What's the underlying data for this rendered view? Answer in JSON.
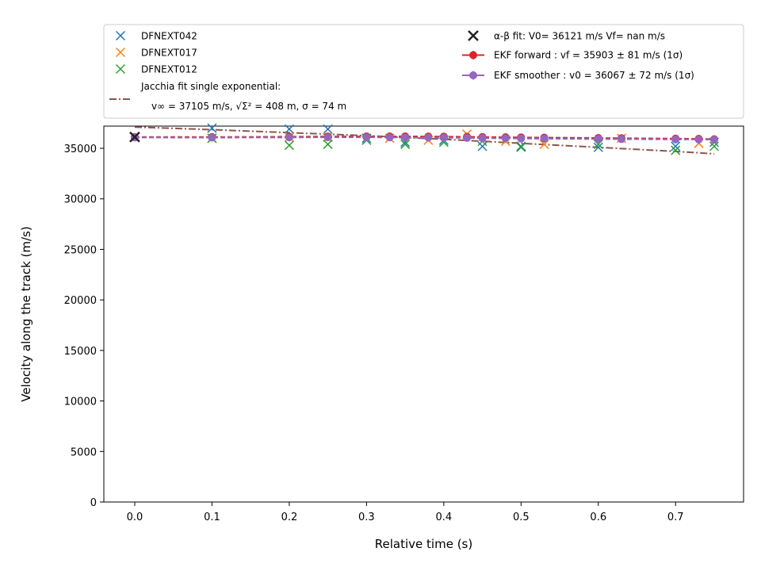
{
  "chart_data": {
    "type": "scatter",
    "xlabel": "Relative time (s)",
    "ylabel": "Velocity along the track (m/s)",
    "xlim": [
      -0.04,
      0.788
    ],
    "ylim": [
      0,
      37200
    ],
    "xticks": [
      0.0,
      0.1,
      0.2,
      0.3,
      0.4,
      0.5,
      0.6,
      0.7
    ],
    "xtick_labels": [
      "0.0",
      "0.1",
      "0.2",
      "0.3",
      "0.4",
      "0.5",
      "0.6",
      "0.7"
    ],
    "yticks": [
      0,
      5000,
      10000,
      15000,
      20000,
      25000,
      30000,
      35000
    ],
    "ytick_labels": [
      "0",
      "5000",
      "10000",
      "15000",
      "20000",
      "25000",
      "30000",
      "35000"
    ],
    "grid": false,
    "legend_placement": "above-plot",
    "series": [
      {
        "name": "DFNEXT042",
        "kind": "x-marker",
        "color": "#1f77b4",
        "x": [
          0.0,
          0.1,
          0.2,
          0.25,
          0.3,
          0.35,
          0.4,
          0.45,
          0.5,
          0.6,
          0.7,
          0.75
        ],
        "y": [
          36100,
          37000,
          36900,
          36900,
          36000,
          35600,
          35800,
          35200,
          35200,
          35100,
          35200,
          35600
        ]
      },
      {
        "name": "DFNEXT017",
        "kind": "x-marker",
        "color": "#ff7f0e",
        "x": [
          0.0,
          0.1,
          0.2,
          0.25,
          0.33,
          0.38,
          0.43,
          0.48,
          0.53,
          0.63,
          0.73
        ],
        "y": [
          36100,
          36000,
          36100,
          36100,
          36000,
          35800,
          36400,
          35700,
          35400,
          36000,
          35500
        ]
      },
      {
        "name": "DFNEXT012",
        "kind": "x-marker",
        "color": "#2ca02c",
        "x": [
          0.0,
          0.1,
          0.2,
          0.25,
          0.3,
          0.35,
          0.4,
          0.45,
          0.5,
          0.6,
          0.7,
          0.75
        ],
        "y": [
          36100,
          36000,
          35300,
          35400,
          35800,
          35400,
          35600,
          35700,
          35100,
          35400,
          34800,
          35200
        ]
      },
      {
        "name_lines": [
          "Jacchia fit single exponential:",
          "v∞ = 37105 m/s, √Σ² = 408 m, σ = 74 m"
        ],
        "kind": "dashdot-line",
        "color": "#8c564b",
        "x": [
          0.0,
          0.1,
          0.2,
          0.3,
          0.4,
          0.5,
          0.6,
          0.7,
          0.75
        ],
        "y": [
          37105,
          36850,
          36550,
          36250,
          35900,
          35500,
          35100,
          34700,
          34450
        ]
      },
      {
        "name": "α-β fit: V0= 36121 m/s   Vf= nan m/s",
        "kind": "x-marker-bold",
        "color": "#222222",
        "x": [
          0.0
        ],
        "y": [
          36121
        ]
      },
      {
        "name": "EKF forward : vf =  35903 ± 81 m/s (1σ)",
        "kind": "dashed-line-dots",
        "color": "#d62728",
        "x": [
          0.0,
          0.1,
          0.2,
          0.25,
          0.3,
          0.33,
          0.35,
          0.38,
          0.4,
          0.43,
          0.45,
          0.48,
          0.5,
          0.53,
          0.6,
          0.63,
          0.7,
          0.73,
          0.75
        ],
        "y": [
          36121,
          36120,
          36150,
          36170,
          36180,
          36180,
          36180,
          36170,
          36160,
          36140,
          36120,
          36100,
          36080,
          36060,
          36020,
          36000,
          35960,
          35940,
          35903
        ]
      },
      {
        "name": "EKF smoother : v0 =  36067 ± 72 m/s (1σ)",
        "kind": "dashed-line-dots",
        "color": "#9467bd",
        "x": [
          0.0,
          0.1,
          0.2,
          0.25,
          0.3,
          0.33,
          0.35,
          0.38,
          0.4,
          0.43,
          0.45,
          0.48,
          0.5,
          0.53,
          0.6,
          0.63,
          0.7,
          0.73,
          0.75
        ],
        "y": [
          36067,
          36060,
          36080,
          36090,
          36090,
          36080,
          36070,
          36060,
          36050,
          36030,
          36010,
          35990,
          35970,
          35950,
          35920,
          35910,
          35880,
          35870,
          35860
        ]
      }
    ],
    "legend_entries": [
      {
        "label": "DFNEXT042"
      },
      {
        "label": "DFNEXT017"
      },
      {
        "label": "DFNEXT012"
      },
      {
        "label_lines": [
          "Jacchia fit single exponential:",
          "v∞ = 37105 m/s, √Σ² = 408 m, σ = 74 m"
        ]
      },
      {
        "label": "α-β fit: V0= 36121 m/s   Vf= nan m/s"
      },
      {
        "label": "EKF forward : vf =  35903 ± 81 m/s (1σ)"
      },
      {
        "label": "EKF smoother : v0 =  36067 ± 72 m/s (1σ)"
      }
    ]
  }
}
